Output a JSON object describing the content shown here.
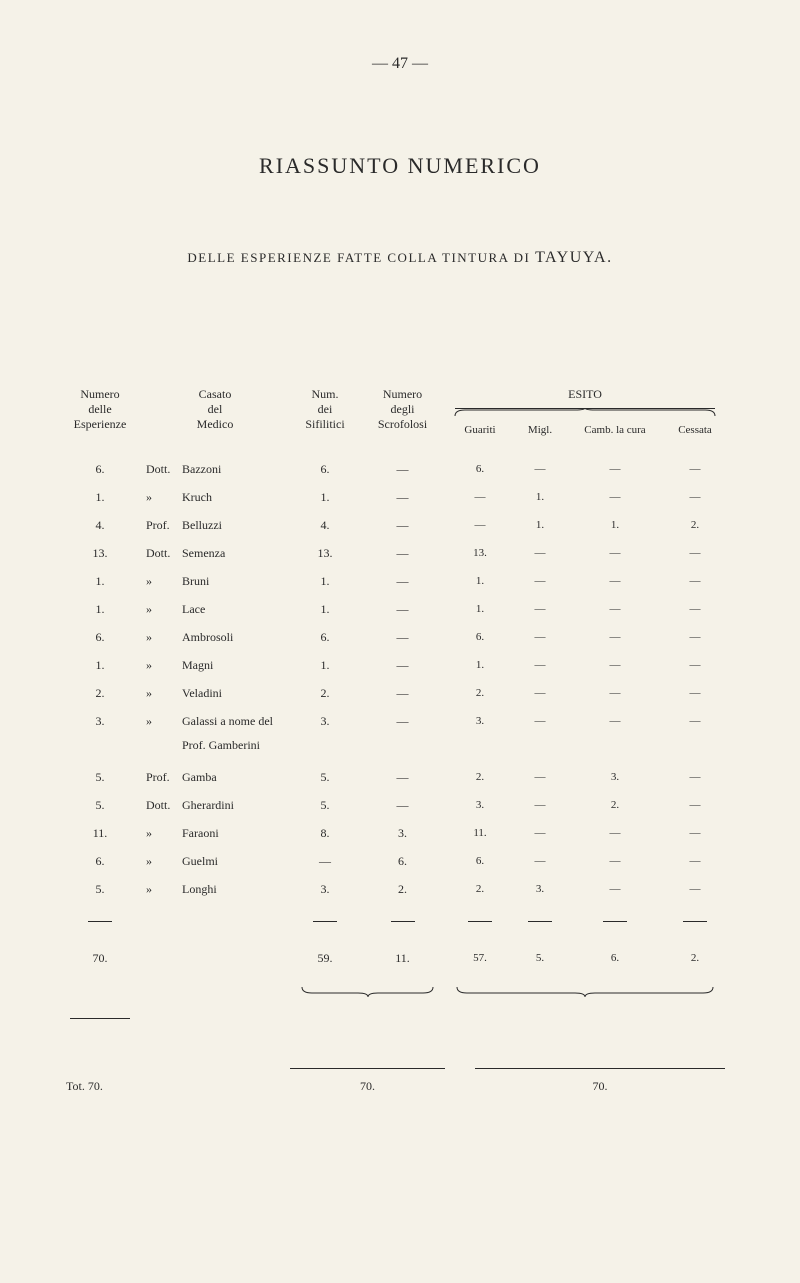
{
  "page_number": "— 47 —",
  "main_title": "RIASSUNTO NUMERICO",
  "subtitle_prefix": "DELLE ESPERIENZE FATTE COLLA TINTURA DI ",
  "subtitle_emphasis": "TAYUYA.",
  "headers": {
    "numero_esp_1": "Numero",
    "numero_esp_2": "delle",
    "numero_esp_3": "Esperienze",
    "casato_1": "Casato",
    "casato_2": "del",
    "casato_3": "Medico",
    "num_sif_1": "Num.",
    "num_sif_2": "dei",
    "num_sif_3": "Sifilitici",
    "num_scrof_1": "Numero",
    "num_scrof_2": "degli",
    "num_scrof_3": "Scrofolosi",
    "esito": "ESITO",
    "guariti": "Guariti",
    "migl": "Migl.",
    "camb": "Camb. la cura",
    "cessata": "Cessata"
  },
  "rows": [
    {
      "num_esp": "6.",
      "title": "Dott.",
      "name": "Bazzoni",
      "sif": "6.",
      "scrof": "—",
      "guariti": "6.",
      "migl": "—",
      "camb": "—",
      "cessata": "—"
    },
    {
      "num_esp": "1.",
      "title": "»",
      "name": "Kruch",
      "sif": "1.",
      "scrof": "—",
      "guariti": "—",
      "migl": "1.",
      "camb": "—",
      "cessata": "—"
    },
    {
      "num_esp": "4.",
      "title": "Prof.",
      "name": "Belluzzi",
      "sif": "4.",
      "scrof": "—",
      "guariti": "—",
      "migl": "1.",
      "camb": "1.",
      "cessata": "2."
    },
    {
      "num_esp": "13.",
      "title": "Dott.",
      "name": "Semenza",
      "sif": "13.",
      "scrof": "—",
      "guariti": "13.",
      "migl": "—",
      "camb": "—",
      "cessata": "—"
    },
    {
      "num_esp": "1.",
      "title": "»",
      "name": "Bruni",
      "sif": "1.",
      "scrof": "—",
      "guariti": "1.",
      "migl": "—",
      "camb": "—",
      "cessata": "—"
    },
    {
      "num_esp": "1.",
      "title": "»",
      "name": "Lace",
      "sif": "1.",
      "scrof": "—",
      "guariti": "1.",
      "migl": "—",
      "camb": "—",
      "cessata": "—"
    },
    {
      "num_esp": "6.",
      "title": "»",
      "name": "Ambrosoli",
      "sif": "6.",
      "scrof": "—",
      "guariti": "6.",
      "migl": "—",
      "camb": "—",
      "cessata": "—"
    },
    {
      "num_esp": "1.",
      "title": "»",
      "name": "Magni",
      "sif": "1.",
      "scrof": "—",
      "guariti": "1.",
      "migl": "—",
      "camb": "—",
      "cessata": "—"
    },
    {
      "num_esp": "2.",
      "title": "»",
      "name": "Veladini",
      "sif": "2.",
      "scrof": "—",
      "guariti": "2.",
      "migl": "—",
      "camb": "—",
      "cessata": "—"
    },
    {
      "num_esp": "3.",
      "title": "»",
      "name": "Galassi a nome del",
      "sif": "3.",
      "scrof": "—",
      "guariti": "3.",
      "migl": "—",
      "camb": "—",
      "cessata": "—"
    },
    {
      "num_esp": "",
      "title": "",
      "name": "Prof. Gamberini",
      "sif": "",
      "scrof": "",
      "guariti": "",
      "migl": "",
      "camb": "",
      "cessata": ""
    },
    {
      "num_esp": "5.",
      "title": "Prof.",
      "name": "Gamba",
      "sif": "5.",
      "scrof": "—",
      "guariti": "2.",
      "migl": "—",
      "camb": "3.",
      "cessata": "—"
    },
    {
      "num_esp": "5.",
      "title": "Dott.",
      "name": "Gherardini",
      "sif": "5.",
      "scrof": "—",
      "guariti": "3.",
      "migl": "—",
      "camb": "2.",
      "cessata": "—"
    },
    {
      "num_esp": "11.",
      "title": "»",
      "name": "Faraoni",
      "sif": "8.",
      "scrof": "3.",
      "guariti": "11.",
      "migl": "—",
      "camb": "—",
      "cessata": "—"
    },
    {
      "num_esp": "6.",
      "title": "»",
      "name": "Guelmi",
      "sif": "—",
      "scrof": "6.",
      "guariti": "6.",
      "migl": "—",
      "camb": "—",
      "cessata": "—"
    },
    {
      "num_esp": "5.",
      "title": "»",
      "name": "Longhi",
      "sif": "3.",
      "scrof": "2.",
      "guariti": "2.",
      "migl": "3.",
      "camb": "—",
      "cessata": "—"
    }
  ],
  "totals": {
    "num_esp": "70.",
    "sif": "59.",
    "scrof": "11.",
    "guariti": "57.",
    "migl": "5.",
    "camb": "6.",
    "cessata": "2."
  },
  "footer": {
    "tot_label": "Tot. 70.",
    "center": "70.",
    "right": "70."
  },
  "colors": {
    "background": "#f5f2e8",
    "text": "#2a2a2a"
  }
}
